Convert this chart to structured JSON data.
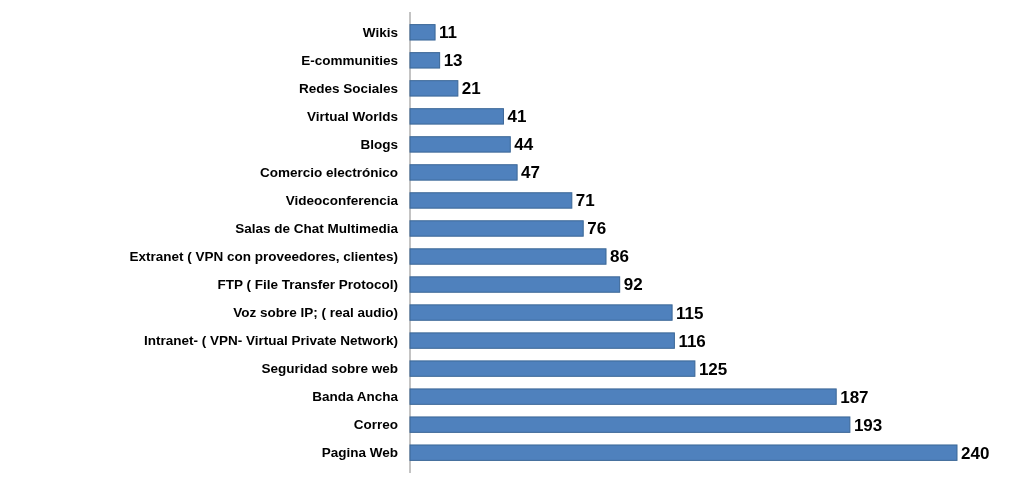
{
  "chart_data": {
    "type": "bar",
    "orientation": "horizontal",
    "categories": [
      "Wikis",
      "E-communities",
      "Redes Sociales",
      "Virtual Worlds",
      "Blogs",
      "Comercio electrónico",
      "Videoconferencia",
      "Salas de Chat Multimedia",
      "Extranet ( VPN con proveedores, clientes)",
      "FTP ( File Transfer Protocol)",
      "Voz sobre IP; ( real audio)",
      "Intranet-  ( VPN- Virtual Private Network)",
      "Seguridad sobre web",
      "Banda Ancha",
      "Correo",
      "Pagina Web"
    ],
    "values": [
      11,
      13,
      21,
      41,
      44,
      47,
      71,
      76,
      86,
      92,
      115,
      116,
      125,
      187,
      193,
      240
    ],
    "color": "#4f81bd",
    "data_labels": true
  }
}
